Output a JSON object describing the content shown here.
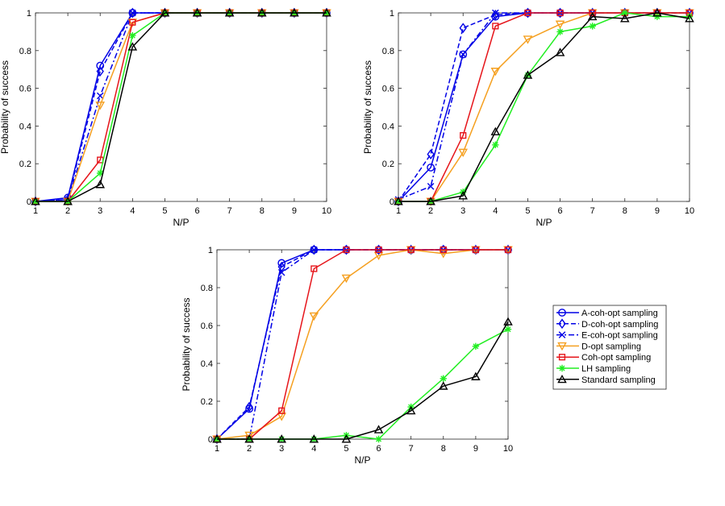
{
  "chart_data": {
    "type": "line",
    "series_styles": [
      {
        "name": "A-coh-opt sampling",
        "color": "#0000e6",
        "marker": "circle",
        "dash": "solid"
      },
      {
        "name": "D-coh-opt sampling",
        "color": "#0000e6",
        "marker": "diamond",
        "dash": "dashed"
      },
      {
        "name": "E-coh-opt sampling",
        "color": "#0000e6",
        "marker": "x",
        "dash": "dashdot"
      },
      {
        "name": "D-opt sampling",
        "color": "#f5a020",
        "marker": "triangle-down",
        "dash": "solid"
      },
      {
        "name": "Coh-opt sampling",
        "color": "#e6151b",
        "marker": "square",
        "dash": "solid"
      },
      {
        "name": "LH sampling",
        "color": "#22ee22",
        "marker": "star",
        "dash": "solid"
      },
      {
        "name": "Standard sampling",
        "color": "#000000",
        "marker": "triangle-up",
        "dash": "solid"
      }
    ],
    "panels": [
      {
        "xlabel": "N/P",
        "ylabel": "Probability of success",
        "x": [
          1,
          2,
          3,
          4,
          5,
          6,
          7,
          8,
          9,
          10
        ],
        "xlim": [
          1,
          10
        ],
        "ylim": [
          0,
          1
        ],
        "xticks": [
          "1",
          "2",
          "3",
          "4",
          "5",
          "6",
          "7",
          "8",
          "9",
          "10"
        ],
        "yticks": [
          "0",
          "0.2",
          "0.4",
          "0.6",
          "0.8",
          "1"
        ],
        "series": [
          {
            "name": "A-coh-opt sampling",
            "values": [
              0,
              0.02,
              0.72,
              1,
              1,
              1,
              1,
              1,
              1,
              1
            ]
          },
          {
            "name": "D-coh-opt sampling",
            "values": [
              0,
              0.01,
              0.69,
              1,
              1,
              1,
              1,
              1,
              1,
              1
            ]
          },
          {
            "name": "E-coh-opt sampling",
            "values": [
              0,
              0.01,
              0.56,
              1,
              1,
              1,
              1,
              1,
              1,
              1
            ]
          },
          {
            "name": "D-opt sampling",
            "values": [
              0,
              0,
              0.51,
              0.95,
              1,
              1,
              1,
              1,
              1,
              1
            ]
          },
          {
            "name": "Coh-opt sampling",
            "values": [
              0,
              0,
              0.22,
              0.95,
              1,
              1,
              1,
              1,
              1,
              1
            ]
          },
          {
            "name": "LH sampling",
            "values": [
              0,
              0,
              0.15,
              0.88,
              1,
              1,
              1,
              1,
              1,
              1
            ]
          },
          {
            "name": "Standard sampling",
            "values": [
              0,
              0,
              0.09,
              0.82,
              1,
              1,
              1,
              1,
              1,
              1
            ]
          }
        ]
      },
      {
        "xlabel": "N/P",
        "ylabel": "Probability of success",
        "x": [
          1,
          2,
          3,
          4,
          5,
          6,
          7,
          8,
          9,
          10
        ],
        "xlim": [
          1,
          10
        ],
        "ylim": [
          0,
          1
        ],
        "xticks": [
          "1",
          "2",
          "3",
          "4",
          "5",
          "6",
          "7",
          "8",
          "9",
          "10"
        ],
        "yticks": [
          "0",
          "0.2",
          "0.4",
          "0.6",
          "0.8",
          "1"
        ],
        "series": [
          {
            "name": "A-coh-opt sampling",
            "values": [
              0,
              0.18,
              0.78,
              0.98,
              1,
              1,
              1,
              1,
              1,
              1
            ]
          },
          {
            "name": "D-coh-opt sampling",
            "values": [
              0,
              0.25,
              0.92,
              0.99,
              1,
              1,
              1,
              1,
              1,
              1
            ]
          },
          {
            "name": "E-coh-opt sampling",
            "values": [
              0.01,
              0.08,
              0.78,
              1,
              1,
              1,
              1,
              1,
              1,
              1
            ]
          },
          {
            "name": "D-opt sampling",
            "values": [
              0,
              0,
              0.26,
              0.69,
              0.86,
              0.94,
              1,
              1,
              1,
              1
            ]
          },
          {
            "name": "Coh-opt sampling",
            "values": [
              0,
              0,
              0.35,
              0.93,
              1,
              1,
              1,
              1,
              1,
              1
            ]
          },
          {
            "name": "LH sampling",
            "values": [
              0,
              0,
              0.05,
              0.3,
              0.67,
              0.9,
              0.93,
              1,
              0.98,
              0.98
            ]
          },
          {
            "name": "Standard sampling",
            "values": [
              0,
              0,
              0.03,
              0.37,
              0.67,
              0.79,
              0.98,
              0.97,
              1,
              0.97
            ]
          }
        ]
      },
      {
        "xlabel": "N/P",
        "ylabel": "Probability of success",
        "x": [
          1,
          2,
          3,
          4,
          5,
          6,
          7,
          8,
          9,
          10
        ],
        "xlim": [
          1,
          10
        ],
        "ylim": [
          0,
          1
        ],
        "xticks": [
          "1",
          "2",
          "3",
          "4",
          "5",
          "6",
          "7",
          "8",
          "9",
          "10"
        ],
        "yticks": [
          "0",
          "0.2",
          "0.4",
          "0.6",
          "0.8",
          "1"
        ],
        "series": [
          {
            "name": "A-coh-opt sampling",
            "values": [
              0,
              0.16,
              0.93,
              1,
              1,
              1,
              1,
              1,
              1,
              1
            ]
          },
          {
            "name": "D-coh-opt sampling",
            "values": [
              0,
              0.17,
              0.91,
              1,
              1,
              1,
              1,
              1,
              1,
              1
            ]
          },
          {
            "name": "E-coh-opt sampling",
            "values": [
              0,
              0,
              0.88,
              1,
              1,
              1,
              1,
              1,
              1,
              1
            ]
          },
          {
            "name": "D-opt sampling",
            "values": [
              0,
              0.02,
              0.12,
              0.65,
              0.85,
              0.97,
              1,
              0.98,
              1,
              1
            ]
          },
          {
            "name": "Coh-opt sampling",
            "values": [
              0,
              0,
              0.15,
              0.9,
              1,
              1,
              1,
              1,
              1,
              1
            ]
          },
          {
            "name": "LH sampling",
            "values": [
              0,
              0,
              0,
              0,
              0.02,
              0,
              0.17,
              0.32,
              0.49,
              0.58
            ]
          },
          {
            "name": "Standard sampling",
            "values": [
              0,
              0,
              0,
              0,
              0,
              0.05,
              0.15,
              0.28,
              0.33,
              0.62
            ]
          }
        ]
      }
    ]
  }
}
